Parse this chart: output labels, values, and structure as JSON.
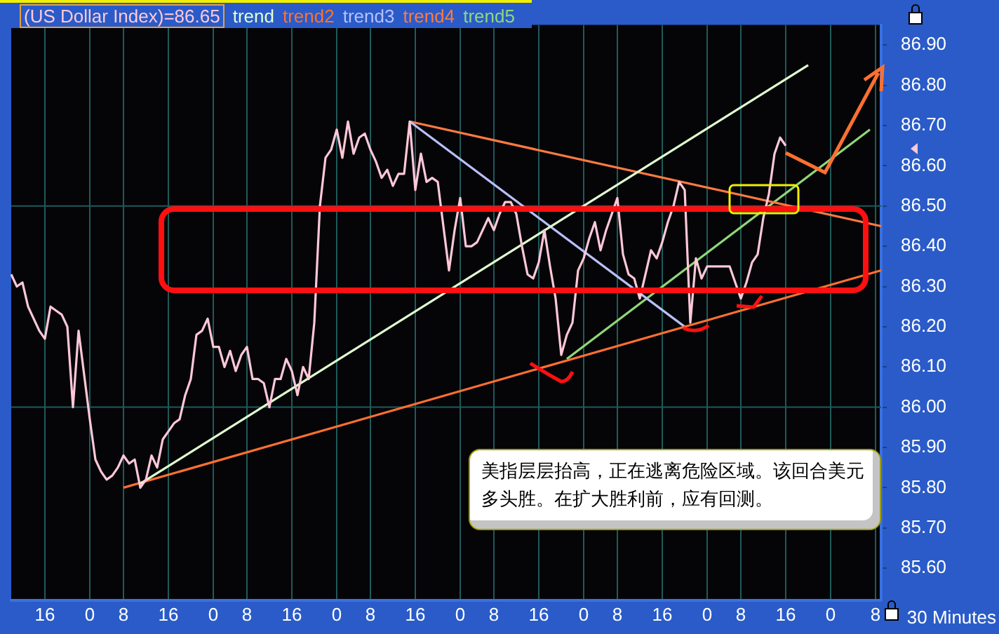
{
  "chart_data": {
    "type": "line",
    "xlabel": "30 Minutes",
    "legend": "top left",
    "grid": "x",
    "marker": "none",
    "line_style": "solid",
    "categories": [
      null,
      null,
      null,
      null,
      null,
      null,
      "16",
      null,
      null,
      null,
      null,
      null,
      null,
      null,
      "0",
      null,
      null,
      null,
      null,
      null,
      "8",
      null,
      null,
      null,
      null,
      null,
      null,
      null,
      "16",
      null,
      null,
      null,
      null,
      null,
      null,
      null,
      "0",
      null,
      null,
      null,
      null,
      null,
      "8",
      null,
      null,
      null,
      null,
      null,
      null,
      null,
      "16",
      null,
      null,
      null,
      null,
      null,
      null,
      null,
      "0",
      null,
      null,
      null,
      null,
      null,
      "8",
      null,
      null,
      null,
      null,
      null,
      null,
      null,
      "16",
      null,
      null,
      null,
      null,
      null,
      null,
      null,
      "0",
      null,
      null,
      null,
      null,
      null,
      "8",
      null,
      null,
      null,
      null,
      null,
      null,
      null,
      "16",
      null,
      null,
      null,
      null,
      null,
      null,
      null,
      "0",
      null,
      null,
      null,
      null,
      null,
      "8",
      null,
      null,
      null,
      null,
      null,
      null,
      null,
      "16",
      null,
      null,
      null,
      null,
      null,
      null,
      null,
      "0",
      null,
      null,
      null,
      null,
      null,
      "8",
      null,
      null,
      null,
      null,
      null,
      null,
      null,
      "16",
      null,
      null,
      null,
      null,
      null,
      null,
      null,
      "0",
      null,
      null,
      null,
      null,
      null,
      null,
      null,
      "8",
      null
    ],
    "ylim": [
      85.52,
      86.95
    ],
    "yticks": [
      {
        "value": 85.6,
        "label": "85.60"
      },
      {
        "value": 85.7,
        "label": "85.70"
      },
      {
        "value": 85.8,
        "label": "85.80"
      },
      {
        "value": 85.9,
        "label": "85.90"
      },
      {
        "value": 86.0,
        "label": "86.00"
      },
      {
        "value": 86.1,
        "label": "86.10"
      },
      {
        "value": 86.2,
        "label": "86.20"
      },
      {
        "value": 86.3,
        "label": "86.30"
      },
      {
        "value": 86.4,
        "label": "86.40"
      },
      {
        "value": 86.5,
        "label": "86.50"
      },
      {
        "value": 86.6,
        "label": "86.60"
      },
      {
        "value": 86.7,
        "label": "86.70"
      },
      {
        "value": 86.8,
        "label": "86.80"
      },
      {
        "value": 86.9,
        "label": "86.90"
      }
    ],
    "ref_lines": [
      {
        "axis": "y",
        "value": 86.0,
        "color": "#1f5a5a"
      },
      {
        "axis": "y",
        "value": 86.5,
        "color": "#1f5a5a"
      }
    ],
    "annotations": [
      "美指层层抬高，正在逃离危险区域。该回合美元多头胜。在扩大胜利前，应有回测。"
    ],
    "series": [
      {
        "name": "(US Dollar Index)=86.65",
        "color": "#ffc8d8",
        "values": [
          86.33,
          86.3,
          86.31,
          86.25,
          86.22,
          86.19,
          86.17,
          86.25,
          86.24,
          86.23,
          86.2,
          86.0,
          86.19,
          86.08,
          85.97,
          85.87,
          85.84,
          85.82,
          85.83,
          85.85,
          85.88,
          85.86,
          85.87,
          85.8,
          85.82,
          85.88,
          85.85,
          85.92,
          85.94,
          85.96,
          85.97,
          86.03,
          86.07,
          86.18,
          86.19,
          86.22,
          86.15,
          86.15,
          86.1,
          86.14,
          86.09,
          86.13,
          86.15,
          86.07,
          86.07,
          86.06,
          86.0,
          86.07,
          86.07,
          86.12,
          86.09,
          86.03,
          86.1,
          86.07,
          86.21,
          86.5,
          86.62,
          86.64,
          86.69,
          86.62,
          86.71,
          86.63,
          86.67,
          86.68,
          86.64,
          86.61,
          86.57,
          86.59,
          86.55,
          86.58,
          86.58,
          86.71,
          86.54,
          86.63,
          86.56,
          86.57,
          86.56,
          86.45,
          86.34,
          86.44,
          86.52,
          86.4,
          86.4,
          86.41,
          86.44,
          86.47,
          86.44,
          86.48,
          86.51,
          86.51,
          86.48,
          86.4,
          86.33,
          86.32,
          86.36,
          86.44,
          86.35,
          86.27,
          86.13,
          86.18,
          86.21,
          86.34,
          86.37,
          86.42,
          86.46,
          86.39,
          86.44,
          86.48,
          86.52,
          86.38,
          86.33,
          86.32,
          86.27,
          86.33,
          86.39,
          86.37,
          86.41,
          86.46,
          86.5,
          86.56,
          86.54,
          86.21,
          86.37,
          86.32,
          86.35,
          86.35,
          86.35,
          86.35,
          86.35,
          86.31,
          86.27,
          86.31,
          86.36,
          86.38,
          86.47,
          86.53,
          86.63,
          86.67,
          86.65,
          null,
          null,
          null,
          null,
          null,
          null,
          null,
          null,
          null,
          null,
          null,
          null,
          null,
          null,
          null,
          null,
          null
        ]
      },
      {
        "name": "trend",
        "color": "#e0ffd0",
        "values": [
          null,
          null,
          null,
          null,
          null,
          null,
          null,
          null,
          null,
          null,
          null,
          null,
          null,
          null,
          null,
          null,
          null,
          null,
          null,
          null,
          null,
          null,
          null,
          85.81,
          null,
          null,
          null,
          null,
          null,
          null,
          null,
          null,
          null,
          null,
          null,
          null,
          null,
          null,
          null,
          null,
          null,
          null,
          null,
          null,
          null,
          null,
          null,
          null,
          null,
          null,
          null,
          null,
          null,
          null,
          null,
          null,
          null,
          null,
          null,
          null,
          null,
          null,
          null,
          null,
          null,
          null,
          null,
          null,
          null,
          null,
          null,
          null,
          null,
          null,
          null,
          null,
          null,
          null,
          null,
          null,
          null,
          null,
          null,
          null,
          null,
          null,
          null,
          null,
          null,
          null,
          null,
          null,
          null,
          null,
          null,
          null,
          null,
          null,
          null,
          null,
          null,
          null,
          null,
          null,
          null,
          null,
          null,
          null,
          null,
          null,
          null,
          null,
          null,
          null,
          null,
          null,
          null,
          null,
          null,
          null,
          null,
          null,
          null,
          null,
          null,
          null,
          null,
          null,
          null,
          null,
          null,
          null,
          null,
          null,
          null,
          null,
          null,
          null,
          null,
          null,
          null,
          null,
          86.85,
          null,
          null,
          null,
          null,
          null,
          null,
          null,
          null,
          null,
          null,
          null,
          null,
          null
        ]
      },
      {
        "name": "trend2",
        "color": "#ff7030",
        "values": [
          null,
          null,
          null,
          null,
          null,
          null,
          null,
          null,
          null,
          null,
          null,
          null,
          null,
          null,
          null,
          null,
          null,
          null,
          null,
          null,
          85.8,
          null,
          null,
          null,
          null,
          null,
          null,
          null,
          null,
          null,
          null,
          null,
          null,
          null,
          null,
          null,
          null,
          null,
          null,
          null,
          null,
          null,
          null,
          null,
          null,
          null,
          null,
          null,
          null,
          null,
          null,
          null,
          null,
          null,
          null,
          null,
          null,
          null,
          null,
          null,
          null,
          null,
          null,
          null,
          null,
          null,
          null,
          null,
          null,
          null,
          null,
          null,
          null,
          null,
          null,
          null,
          null,
          null,
          null,
          null,
          null,
          null,
          null,
          null,
          null,
          null,
          null,
          null,
          null,
          null,
          null,
          null,
          null,
          null,
          null,
          null,
          null,
          null,
          null,
          null,
          null,
          null,
          null,
          null,
          null,
          null,
          null,
          null,
          null,
          null,
          null,
          null,
          null,
          null,
          null,
          null,
          null,
          null,
          null,
          null,
          null,
          null,
          null,
          null,
          null,
          null,
          null,
          null,
          null,
          null,
          null,
          null,
          null,
          null,
          null,
          null,
          null,
          null,
          null,
          null,
          null,
          null,
          null,
          null,
          null,
          null,
          null,
          null,
          null,
          null,
          null,
          null,
          null,
          null,
          null,
          86.34
        ]
      },
      {
        "name": "trend3",
        "color": "#b8c0f8",
        "values": [
          null,
          null,
          null,
          null,
          null,
          null,
          null,
          null,
          null,
          null,
          null,
          null,
          null,
          null,
          null,
          null,
          null,
          null,
          null,
          null,
          null,
          null,
          null,
          null,
          null,
          null,
          null,
          null,
          null,
          null,
          null,
          null,
          null,
          null,
          null,
          null,
          null,
          null,
          null,
          null,
          null,
          null,
          null,
          null,
          null,
          null,
          null,
          null,
          null,
          null,
          null,
          null,
          null,
          null,
          null,
          null,
          null,
          null,
          null,
          null,
          null,
          null,
          null,
          null,
          null,
          null,
          null,
          null,
          null,
          null,
          null,
          86.71,
          null,
          null,
          null,
          null,
          null,
          null,
          null,
          null,
          null,
          null,
          null,
          null,
          null,
          null,
          null,
          null,
          null,
          null,
          null,
          null,
          null,
          null,
          null,
          null,
          null,
          null,
          null,
          null,
          null,
          null,
          null,
          null,
          null,
          null,
          null,
          null,
          null,
          null,
          null,
          null,
          null,
          null,
          null,
          null,
          null,
          null,
          null,
          null,
          86.2,
          null,
          null,
          null,
          null,
          null,
          null,
          null,
          null,
          null,
          null,
          null,
          null,
          null,
          null,
          null,
          null,
          null,
          null,
          null,
          null,
          null,
          null,
          null,
          null,
          null,
          null,
          null,
          null,
          null,
          null,
          null,
          null,
          null,
          null,
          null
        ]
      },
      {
        "name": "trend4",
        "color": "#ff7a40",
        "values": [
          null,
          null,
          null,
          null,
          null,
          null,
          null,
          null,
          null,
          null,
          null,
          null,
          null,
          null,
          null,
          null,
          null,
          null,
          null,
          null,
          null,
          null,
          null,
          null,
          null,
          null,
          null,
          null,
          null,
          null,
          null,
          null,
          null,
          null,
          null,
          null,
          null,
          null,
          null,
          null,
          null,
          null,
          null,
          null,
          null,
          null,
          null,
          null,
          null,
          null,
          null,
          null,
          null,
          null,
          null,
          null,
          null,
          null,
          null,
          null,
          null,
          null,
          null,
          null,
          null,
          null,
          null,
          null,
          null,
          null,
          null,
          86.71,
          null,
          null,
          null,
          null,
          null,
          null,
          null,
          null,
          null,
          null,
          null,
          null,
          null,
          null,
          null,
          null,
          null,
          null,
          null,
          null,
          null,
          null,
          null,
          null,
          null,
          null,
          null,
          null,
          null,
          null,
          null,
          null,
          null,
          null,
          null,
          null,
          null,
          null,
          null,
          null,
          null,
          null,
          null,
          null,
          null,
          null,
          null,
          null,
          null,
          null,
          null,
          null,
          null,
          null,
          null,
          null,
          null,
          null,
          null,
          null,
          null,
          null,
          null,
          null,
          null,
          null,
          null,
          null,
          null,
          null,
          null,
          null,
          null,
          null,
          null,
          null,
          null,
          null,
          null,
          null,
          null,
          null,
          null,
          86.45
        ]
      },
      {
        "name": "trend5",
        "color": "#90d878",
        "values": [
          null,
          null,
          null,
          null,
          null,
          null,
          null,
          null,
          null,
          null,
          null,
          null,
          null,
          null,
          null,
          null,
          null,
          null,
          null,
          null,
          null,
          null,
          null,
          null,
          null,
          null,
          null,
          null,
          null,
          null,
          null,
          null,
          null,
          null,
          null,
          null,
          null,
          null,
          null,
          null,
          null,
          null,
          null,
          null,
          null,
          null,
          null,
          null,
          null,
          null,
          null,
          null,
          null,
          null,
          null,
          null,
          null,
          null,
          null,
          null,
          null,
          null,
          null,
          null,
          null,
          null,
          null,
          null,
          null,
          null,
          null,
          null,
          null,
          null,
          null,
          null,
          null,
          null,
          null,
          null,
          null,
          null,
          null,
          null,
          null,
          null,
          null,
          null,
          null,
          null,
          null,
          null,
          null,
          null,
          null,
          null,
          null,
          null,
          null,
          86.12,
          null,
          null,
          null,
          null,
          null,
          null,
          null,
          null,
          null,
          null,
          null,
          null,
          null,
          null,
          null,
          null,
          null,
          null,
          null,
          null,
          null,
          null,
          null,
          null,
          null,
          null,
          null,
          null,
          null,
          null,
          null,
          null,
          null,
          null,
          null,
          null,
          null,
          null,
          null,
          null,
          null,
          null,
          null,
          null,
          null,
          null,
          null,
          null,
          null,
          null,
          null,
          null,
          null,
          86.69,
          null,
          null
        ]
      }
    ]
  }
}
